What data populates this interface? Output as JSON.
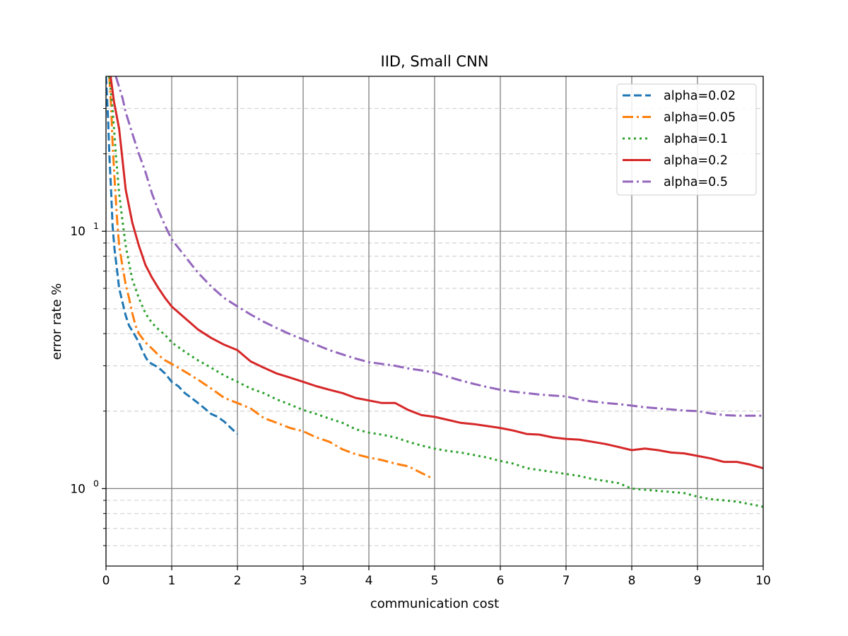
{
  "chart_data": {
    "type": "line",
    "title": "IID, Small CNN",
    "xlabel": "communication cost",
    "ylabel": "error rate %",
    "xlim": [
      0,
      10
    ],
    "ylim": [
      0.5,
      40
    ],
    "yscale": "log",
    "grid": {
      "major": "solid gray",
      "minor_y": "dashed light gray"
    },
    "legend_position": "top-right",
    "x_ticks": [
      "0",
      "1",
      "2",
      "3",
      "4",
      "5",
      "6",
      "7",
      "8",
      "9",
      "10"
    ],
    "y_ticks": [
      {
        "value": 1,
        "base": "10",
        "exp": "0"
      },
      {
        "value": 10,
        "base": "10",
        "exp": "1"
      }
    ],
    "series": [
      {
        "name": "alpha=0.02",
        "color": "#1f77b4",
        "style": "dashed",
        "points": [
          [
            0.0,
            40
          ],
          [
            0.03,
            28
          ],
          [
            0.05,
            20
          ],
          [
            0.08,
            14
          ],
          [
            0.1,
            10.5
          ],
          [
            0.13,
            8.5
          ],
          [
            0.17,
            7
          ],
          [
            0.2,
            6
          ],
          [
            0.25,
            5.3
          ],
          [
            0.3,
            4.7
          ],
          [
            0.35,
            4.3
          ],
          [
            0.4,
            4.1
          ],
          [
            0.45,
            3.9
          ],
          [
            0.5,
            3.7
          ],
          [
            0.55,
            3.45
          ],
          [
            0.6,
            3.25
          ],
          [
            0.65,
            3.1
          ],
          [
            0.7,
            3.05
          ],
          [
            0.8,
            2.95
          ],
          [
            0.9,
            2.8
          ],
          [
            1.0,
            2.6
          ],
          [
            1.1,
            2.5
          ],
          [
            1.2,
            2.35
          ],
          [
            1.3,
            2.25
          ],
          [
            1.4,
            2.15
          ],
          [
            1.5,
            2.05
          ],
          [
            1.6,
            1.95
          ],
          [
            1.7,
            1.9
          ],
          [
            1.8,
            1.82
          ],
          [
            1.9,
            1.72
          ],
          [
            2.0,
            1.63
          ]
        ]
      },
      {
        "name": "alpha=0.05",
        "color": "#ff7f0e",
        "style": "dashdot",
        "points": [
          [
            0.05,
            40
          ],
          [
            0.08,
            30
          ],
          [
            0.1,
            22
          ],
          [
            0.13,
            16
          ],
          [
            0.17,
            11
          ],
          [
            0.2,
            8.8
          ],
          [
            0.25,
            7.3
          ],
          [
            0.3,
            6.2
          ],
          [
            0.35,
            5.5
          ],
          [
            0.4,
            4.8
          ],
          [
            0.45,
            4.3
          ],
          [
            0.5,
            4.0
          ],
          [
            0.6,
            3.7
          ],
          [
            0.7,
            3.5
          ],
          [
            0.8,
            3.3
          ],
          [
            0.9,
            3.15
          ],
          [
            1.0,
            3.05
          ],
          [
            1.2,
            2.85
          ],
          [
            1.4,
            2.65
          ],
          [
            1.6,
            2.45
          ],
          [
            1.8,
            2.25
          ],
          [
            2.0,
            2.15
          ],
          [
            2.2,
            2.05
          ],
          [
            2.4,
            1.88
          ],
          [
            2.6,
            1.8
          ],
          [
            2.8,
            1.72
          ],
          [
            3.0,
            1.67
          ],
          [
            3.2,
            1.58
          ],
          [
            3.4,
            1.52
          ],
          [
            3.6,
            1.42
          ],
          [
            3.8,
            1.36
          ],
          [
            4.0,
            1.32
          ],
          [
            4.2,
            1.29
          ],
          [
            4.4,
            1.25
          ],
          [
            4.6,
            1.22
          ],
          [
            4.8,
            1.15
          ],
          [
            4.95,
            1.1
          ]
        ]
      },
      {
        "name": "alpha=0.1",
        "color": "#2ca02c",
        "style": "dotted",
        "points": [
          [
            0.05,
            40
          ],
          [
            0.1,
            30
          ],
          [
            0.15,
            20
          ],
          [
            0.2,
            14
          ],
          [
            0.25,
            11
          ],
          [
            0.3,
            8.8
          ],
          [
            0.35,
            7.5
          ],
          [
            0.4,
            6.5
          ],
          [
            0.5,
            5.5
          ],
          [
            0.6,
            4.8
          ],
          [
            0.7,
            4.4
          ],
          [
            0.8,
            4.15
          ],
          [
            0.9,
            3.95
          ],
          [
            1.0,
            3.7
          ],
          [
            1.2,
            3.4
          ],
          [
            1.4,
            3.15
          ],
          [
            1.6,
            2.95
          ],
          [
            1.8,
            2.75
          ],
          [
            2.0,
            2.6
          ],
          [
            2.2,
            2.45
          ],
          [
            2.4,
            2.35
          ],
          [
            2.6,
            2.22
          ],
          [
            2.8,
            2.12
          ],
          [
            3.0,
            2.02
          ],
          [
            3.2,
            1.95
          ],
          [
            3.4,
            1.87
          ],
          [
            3.6,
            1.8
          ],
          [
            3.8,
            1.7
          ],
          [
            4.0,
            1.65
          ],
          [
            4.2,
            1.62
          ],
          [
            4.4,
            1.58
          ],
          [
            4.6,
            1.52
          ],
          [
            4.8,
            1.47
          ],
          [
            5.0,
            1.43
          ],
          [
            5.2,
            1.4
          ],
          [
            5.4,
            1.38
          ],
          [
            5.6,
            1.35
          ],
          [
            5.8,
            1.32
          ],
          [
            6.0,
            1.28
          ],
          [
            6.2,
            1.25
          ],
          [
            6.4,
            1.2
          ],
          [
            6.6,
            1.18
          ],
          [
            6.8,
            1.16
          ],
          [
            7.0,
            1.14
          ],
          [
            7.2,
            1.12
          ],
          [
            7.4,
            1.09
          ],
          [
            7.6,
            1.07
          ],
          [
            7.8,
            1.05
          ],
          [
            8.0,
            1.0
          ],
          [
            8.2,
            0.99
          ],
          [
            8.4,
            0.98
          ],
          [
            8.6,
            0.97
          ],
          [
            8.8,
            0.96
          ],
          [
            9.0,
            0.93
          ],
          [
            9.2,
            0.91
          ],
          [
            9.4,
            0.9
          ],
          [
            9.6,
            0.89
          ],
          [
            9.8,
            0.87
          ],
          [
            10.0,
            0.85
          ]
        ]
      },
      {
        "name": "alpha=0.2",
        "color": "#d62728",
        "style": "solid",
        "points": [
          [
            0.07,
            40
          ],
          [
            0.12,
            32
          ],
          [
            0.2,
            25
          ],
          [
            0.25,
            19
          ],
          [
            0.3,
            14.5
          ],
          [
            0.35,
            12.5
          ],
          [
            0.4,
            10.8
          ],
          [
            0.5,
            8.8
          ],
          [
            0.6,
            7.4
          ],
          [
            0.7,
            6.6
          ],
          [
            0.8,
            6.0
          ],
          [
            0.9,
            5.5
          ],
          [
            1.0,
            5.1
          ],
          [
            1.2,
            4.6
          ],
          [
            1.4,
            4.15
          ],
          [
            1.6,
            3.85
          ],
          [
            1.8,
            3.62
          ],
          [
            2.0,
            3.45
          ],
          [
            2.2,
            3.12
          ],
          [
            2.4,
            2.95
          ],
          [
            2.6,
            2.8
          ],
          [
            2.8,
            2.7
          ],
          [
            3.0,
            2.6
          ],
          [
            3.2,
            2.5
          ],
          [
            3.4,
            2.42
          ],
          [
            3.6,
            2.35
          ],
          [
            3.8,
            2.25
          ],
          [
            4.0,
            2.2
          ],
          [
            4.2,
            2.15
          ],
          [
            4.4,
            2.15
          ],
          [
            4.6,
            2.02
          ],
          [
            4.8,
            1.93
          ],
          [
            5.0,
            1.9
          ],
          [
            5.2,
            1.85
          ],
          [
            5.4,
            1.8
          ],
          [
            5.6,
            1.78
          ],
          [
            5.8,
            1.75
          ],
          [
            6.0,
            1.72
          ],
          [
            6.2,
            1.68
          ],
          [
            6.4,
            1.63
          ],
          [
            6.6,
            1.62
          ],
          [
            6.8,
            1.58
          ],
          [
            7.0,
            1.56
          ],
          [
            7.2,
            1.55
          ],
          [
            7.4,
            1.52
          ],
          [
            7.6,
            1.49
          ],
          [
            7.8,
            1.45
          ],
          [
            8.0,
            1.41
          ],
          [
            8.2,
            1.43
          ],
          [
            8.4,
            1.41
          ],
          [
            8.6,
            1.38
          ],
          [
            8.8,
            1.37
          ],
          [
            9.0,
            1.34
          ],
          [
            9.2,
            1.31
          ],
          [
            9.4,
            1.27
          ],
          [
            9.6,
            1.27
          ],
          [
            9.8,
            1.24
          ],
          [
            10.0,
            1.2
          ]
        ]
      },
      {
        "name": "alpha=0.5",
        "color": "#9467bd",
        "style": "dashdot",
        "points": [
          [
            0.15,
            40
          ],
          [
            0.25,
            33
          ],
          [
            0.3,
            29
          ],
          [
            0.4,
            24
          ],
          [
            0.5,
            20
          ],
          [
            0.6,
            17
          ],
          [
            0.7,
            14
          ],
          [
            0.8,
            12
          ],
          [
            0.9,
            10.5
          ],
          [
            1.0,
            9.3
          ],
          [
            1.2,
            8
          ],
          [
            1.4,
            6.9
          ],
          [
            1.6,
            6.1
          ],
          [
            1.8,
            5.5
          ],
          [
            2.0,
            5.1
          ],
          [
            2.2,
            4.75
          ],
          [
            2.4,
            4.45
          ],
          [
            2.6,
            4.2
          ],
          [
            2.8,
            3.98
          ],
          [
            3.0,
            3.8
          ],
          [
            3.2,
            3.62
          ],
          [
            3.4,
            3.45
          ],
          [
            3.6,
            3.32
          ],
          [
            3.8,
            3.2
          ],
          [
            4.0,
            3.1
          ],
          [
            4.2,
            3.05
          ],
          [
            4.4,
            3.0
          ],
          [
            4.6,
            2.93
          ],
          [
            4.8,
            2.88
          ],
          [
            5.0,
            2.82
          ],
          [
            5.2,
            2.72
          ],
          [
            5.4,
            2.63
          ],
          [
            5.6,
            2.55
          ],
          [
            5.8,
            2.48
          ],
          [
            6.0,
            2.42
          ],
          [
            6.2,
            2.38
          ],
          [
            6.4,
            2.35
          ],
          [
            6.6,
            2.32
          ],
          [
            6.8,
            2.3
          ],
          [
            7.0,
            2.28
          ],
          [
            7.2,
            2.22
          ],
          [
            7.4,
            2.18
          ],
          [
            7.6,
            2.15
          ],
          [
            7.8,
            2.13
          ],
          [
            8.0,
            2.1
          ],
          [
            8.2,
            2.07
          ],
          [
            8.4,
            2.05
          ],
          [
            8.6,
            2.03
          ],
          [
            8.8,
            2.01
          ],
          [
            9.0,
            2.0
          ],
          [
            9.2,
            1.96
          ],
          [
            9.4,
            1.93
          ],
          [
            9.6,
            1.92
          ],
          [
            9.8,
            1.92
          ],
          [
            10.0,
            1.92
          ]
        ]
      }
    ]
  }
}
